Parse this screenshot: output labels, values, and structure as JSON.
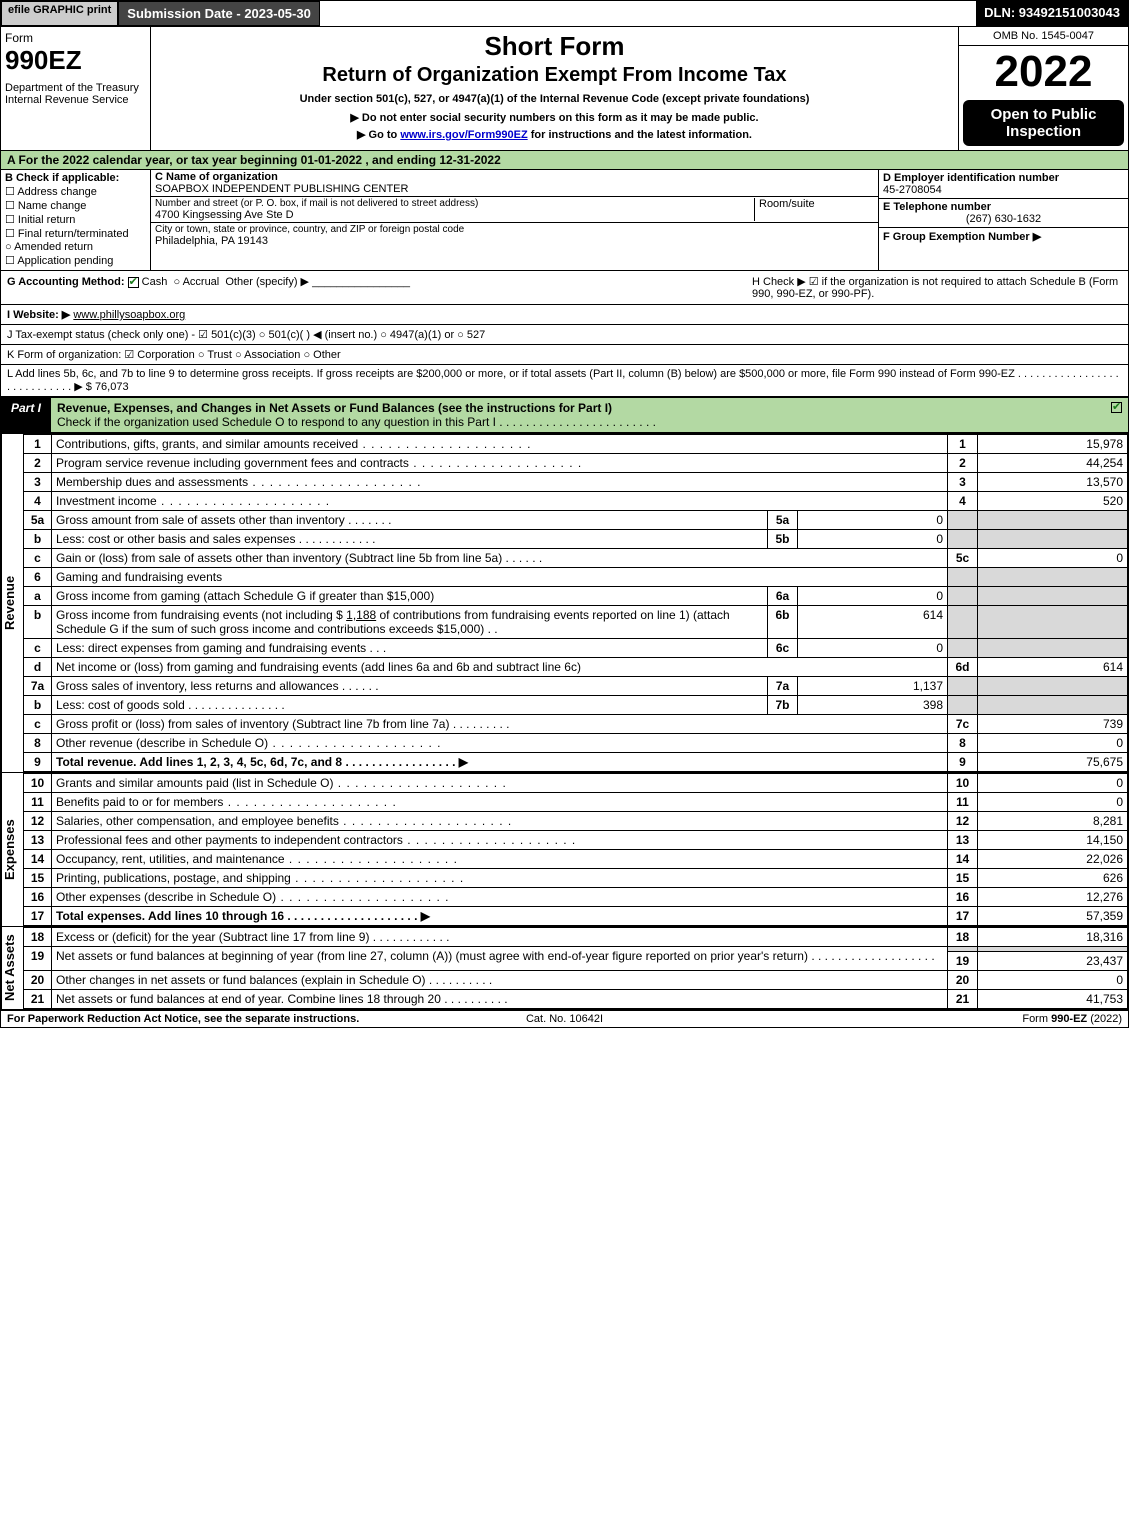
{
  "colors": {
    "green": "#b3d9a3",
    "grey": "#d9d9d9",
    "link": "#0000cc",
    "black": "#000000",
    "white": "#ffffff"
  },
  "topbar": {
    "efile": "efile GRAPHIC print",
    "submission": "Submission Date - 2023-05-30",
    "dln": "DLN: 93492151003043"
  },
  "header": {
    "form": "Form",
    "formnum": "990EZ",
    "dept": "Department of the Treasury\nInternal Revenue Service",
    "title1": "Short Form",
    "title2": "Return of Organization Exempt From Income Tax",
    "sub1": "Under section 501(c), 527, or 4947(a)(1) of the Internal Revenue Code (except private foundations)",
    "sub2": "▶ Do not enter social security numbers on this form as it may be made public.",
    "sub3_pre": "▶ Go to ",
    "sub3_link": "www.irs.gov/Form990EZ",
    "sub3_post": " for instructions and the latest information.",
    "omb": "OMB No. 1545-0047",
    "year": "2022",
    "open": "Open to Public Inspection"
  },
  "A": "A  For the 2022 calendar year, or tax year beginning 01-01-2022 , and ending 12-31-2022",
  "B": {
    "label": "B  Check if applicable:",
    "opts": [
      "Address change",
      "Name change",
      "Initial return",
      "Final return/terminated",
      "Amended return",
      "Application pending"
    ]
  },
  "C": {
    "name_lbl": "C Name of organization",
    "name": "SOAPBOX INDEPENDENT PUBLISHING CENTER",
    "street_lbl": "Number and street (or P. O. box, if mail is not delivered to street address)",
    "street": "4700 Kingsessing Ave Ste D",
    "room_lbl": "Room/suite",
    "city_lbl": "City or town, state or province, country, and ZIP or foreign postal code",
    "city": "Philadelphia, PA  19143"
  },
  "D": {
    "lbl": "D Employer identification number",
    "val": "45-2708054"
  },
  "E": {
    "lbl": "E Telephone number",
    "val": "(267) 630-1632"
  },
  "F": {
    "lbl": "F Group Exemption Number  ▶",
    "val": ""
  },
  "G": {
    "lbl": "G Accounting Method:",
    "cash": "Cash",
    "accrual": "Accrual",
    "other": "Other (specify) ▶"
  },
  "H": "H    Check ▶  ☑  if the organization is not required to attach Schedule B (Form 990, 990-EZ, or 990-PF).",
  "I": {
    "lbl": "I Website: ▶",
    "val": "www.phillysoapbox.org"
  },
  "J": "J Tax-exempt status (check only one) -  ☑ 501(c)(3)  ○ 501(c)(  ) ◀ (insert no.)  ○ 4947(a)(1) or  ○ 527",
  "K": "K Form of organization:   ☑ Corporation   ○ Trust   ○ Association   ○ Other",
  "L": {
    "text": "L Add lines 5b, 6c, and 7b to line 9 to determine gross receipts. If gross receipts are $200,000 or more, or if total assets (Part II, column (B) below) are $500,000 or more, file Form 990 instead of Form 990-EZ  .  .  .  .  .  .  .  .  .  .  .  .  .  .  .  .  .  .  .  .  .  .  .  .  .  .  .  . ▶ $",
    "val": "76,073"
  },
  "partI": {
    "tag": "Part I",
    "title": "Revenue, Expenses, and Changes in Net Assets or Fund Balances (see the instructions for Part I)",
    "check": "Check if the organization used Schedule O to respond to any question in this Part I  .  .  .  .  .  .  .  .  .  .  .  .  .  .  .  .  .  .  .  .  .  .  .  ."
  },
  "sections": {
    "revenue": "Revenue",
    "expenses": "Expenses",
    "netassets": "Net Assets"
  },
  "lines": {
    "1": {
      "n": "1",
      "d": "Contributions, gifts, grants, and similar amounts received",
      "rn": "1",
      "rv": "15,978"
    },
    "2": {
      "n": "2",
      "d": "Program service revenue including government fees and contracts",
      "rn": "2",
      "rv": "44,254"
    },
    "3": {
      "n": "3",
      "d": "Membership dues and assessments",
      "rn": "3",
      "rv": "13,570"
    },
    "4": {
      "n": "4",
      "d": "Investment income",
      "rn": "4",
      "rv": "520"
    },
    "5a": {
      "n": "5a",
      "d": "Gross amount from sale of assets other than inventory",
      "sn": "5a",
      "sv": "0"
    },
    "5b": {
      "n": "b",
      "d": "Less: cost or other basis and sales expenses",
      "sn": "5b",
      "sv": "0"
    },
    "5c": {
      "n": "c",
      "d": "Gain or (loss) from sale of assets other than inventory (Subtract line 5b from line 5a)",
      "rn": "5c",
      "rv": "0"
    },
    "6": {
      "n": "6",
      "d": "Gaming and fundraising events"
    },
    "6a": {
      "n": "a",
      "d": "Gross income from gaming (attach Schedule G if greater than $15,000)",
      "sn": "6a",
      "sv": "0"
    },
    "6b": {
      "n": "b",
      "d1": "Gross income from fundraising events (not including $ ",
      "amt": "1,188",
      "d2": " of contributions from fundraising events reported on line 1) (attach Schedule G if the sum of such gross income and contributions exceeds $15,000)",
      "sn": "6b",
      "sv": "614"
    },
    "6c": {
      "n": "c",
      "d": "Less: direct expenses from gaming and fundraising events",
      "sn": "6c",
      "sv": "0"
    },
    "6d": {
      "n": "d",
      "d": "Net income or (loss) from gaming and fundraising events (add lines 6a and 6b and subtract line 6c)",
      "rn": "6d",
      "rv": "614"
    },
    "7a": {
      "n": "7a",
      "d": "Gross sales of inventory, less returns and allowances",
      "sn": "7a",
      "sv": "1,137"
    },
    "7b": {
      "n": "b",
      "d": "Less: cost of goods sold",
      "sn": "7b",
      "sv": "398"
    },
    "7c": {
      "n": "c",
      "d": "Gross profit or (loss) from sales of inventory (Subtract line 7b from line 7a)",
      "rn": "7c",
      "rv": "739"
    },
    "8": {
      "n": "8",
      "d": "Other revenue (describe in Schedule O)",
      "rn": "8",
      "rv": "0"
    },
    "9": {
      "n": "9",
      "d": "Total revenue. Add lines 1, 2, 3, 4, 5c, 6d, 7c, and 8   .  .  .  .  .  .  .  .  .  .  .  .  .  .  .  .  . ▶",
      "rn": "9",
      "rv": "75,675"
    },
    "10": {
      "n": "10",
      "d": "Grants and similar amounts paid (list in Schedule O)",
      "rn": "10",
      "rv": "0"
    },
    "11": {
      "n": "11",
      "d": "Benefits paid to or for members",
      "rn": "11",
      "rv": "0"
    },
    "12": {
      "n": "12",
      "d": "Salaries, other compensation, and employee benefits",
      "rn": "12",
      "rv": "8,281"
    },
    "13": {
      "n": "13",
      "d": "Professional fees and other payments to independent contractors",
      "rn": "13",
      "rv": "14,150"
    },
    "14": {
      "n": "14",
      "d": "Occupancy, rent, utilities, and maintenance",
      "rn": "14",
      "rv": "22,026"
    },
    "15": {
      "n": "15",
      "d": "Printing, publications, postage, and shipping",
      "rn": "15",
      "rv": "626"
    },
    "16": {
      "n": "16",
      "d": "Other expenses (describe in Schedule O)",
      "rn": "16",
      "rv": "12,276"
    },
    "17": {
      "n": "17",
      "d": "Total expenses. Add lines 10 through 16    .  .  .  .  .  .  .  .  .  .  .  .  .  .  .  .  .  .  .  . ▶",
      "rn": "17",
      "rv": "57,359"
    },
    "18": {
      "n": "18",
      "d": "Excess or (deficit) for the year (Subtract line 17 from line 9)",
      "rn": "18",
      "rv": "18,316"
    },
    "19": {
      "n": "19",
      "d": "Net assets or fund balances at beginning of year (from line 27, column (A)) (must agree with end-of-year figure reported on prior year's return)",
      "rn": "19",
      "rv": "23,437"
    },
    "20": {
      "n": "20",
      "d": "Other changes in net assets or fund balances (explain in Schedule O)",
      "rn": "20",
      "rv": "0"
    },
    "21": {
      "n": "21",
      "d": "Net assets or fund balances at end of year. Combine lines 18 through 20",
      "rn": "21",
      "rv": "41,753"
    }
  },
  "foot": {
    "l": "For Paperwork Reduction Act Notice, see the separate instructions.",
    "m": "Cat. No. 10642I",
    "r_pre": "Form ",
    "r_bold": "990-EZ",
    "r_post": " (2022)"
  }
}
